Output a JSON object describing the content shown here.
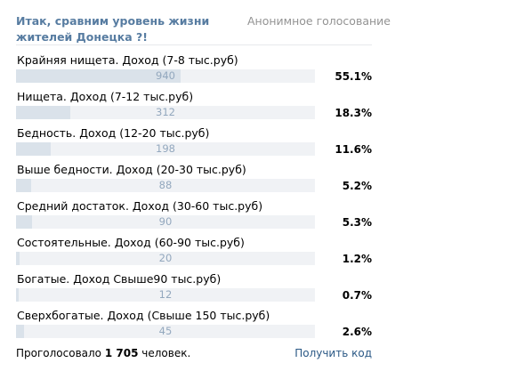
{
  "poll": {
    "title": "Итак, сравним уровень жизни жителей Донецка ?!",
    "type_label": "Анонимное голосование",
    "answers": [
      {
        "label": "Крайняя нищета. Доход (7-8 тыс.руб)",
        "votes": "940",
        "percent": "55.1%",
        "share": 55.1
      },
      {
        "label": "Нищета. Доход (7-12 тыс.руб)",
        "votes": "312",
        "percent": "18.3%",
        "share": 18.3
      },
      {
        "label": "Бедность. Доход (12-20 тыс.руб)",
        "votes": "198",
        "percent": "11.6%",
        "share": 11.6
      },
      {
        "label": "Выше бедности. Доход (20-30 тыс.руб)",
        "votes": "88",
        "percent": "5.2%",
        "share": 5.2
      },
      {
        "label": "Средний достаток. Доход (30-60 тыс.руб)",
        "votes": "90",
        "percent": "5.3%",
        "share": 5.3
      },
      {
        "label": "Состоятельные. Доход (60-90 тыс.руб)",
        "votes": "20",
        "percent": "1.2%",
        "share": 1.2
      },
      {
        "label": "Богатые. Доход Свыше90 тыс.руб)",
        "votes": "12",
        "percent": "0.7%",
        "share": 0.7
      },
      {
        "label": "Сверхбогатые. Доход (Свыше 150 тыс.руб)",
        "votes": "45",
        "percent": "2.6%",
        "share": 2.6
      }
    ],
    "footer": {
      "votes_prefix": "Проголосовало",
      "votes_total": "1 705",
      "votes_suffix": "человек.",
      "get_code_label": "Получить код"
    }
  },
  "colors": {
    "title": "#577ca1",
    "bar_fill": "#dae2ea",
    "bar_track": "#f0f2f5",
    "count_text": "#93a8be",
    "link": "#2a5885"
  }
}
